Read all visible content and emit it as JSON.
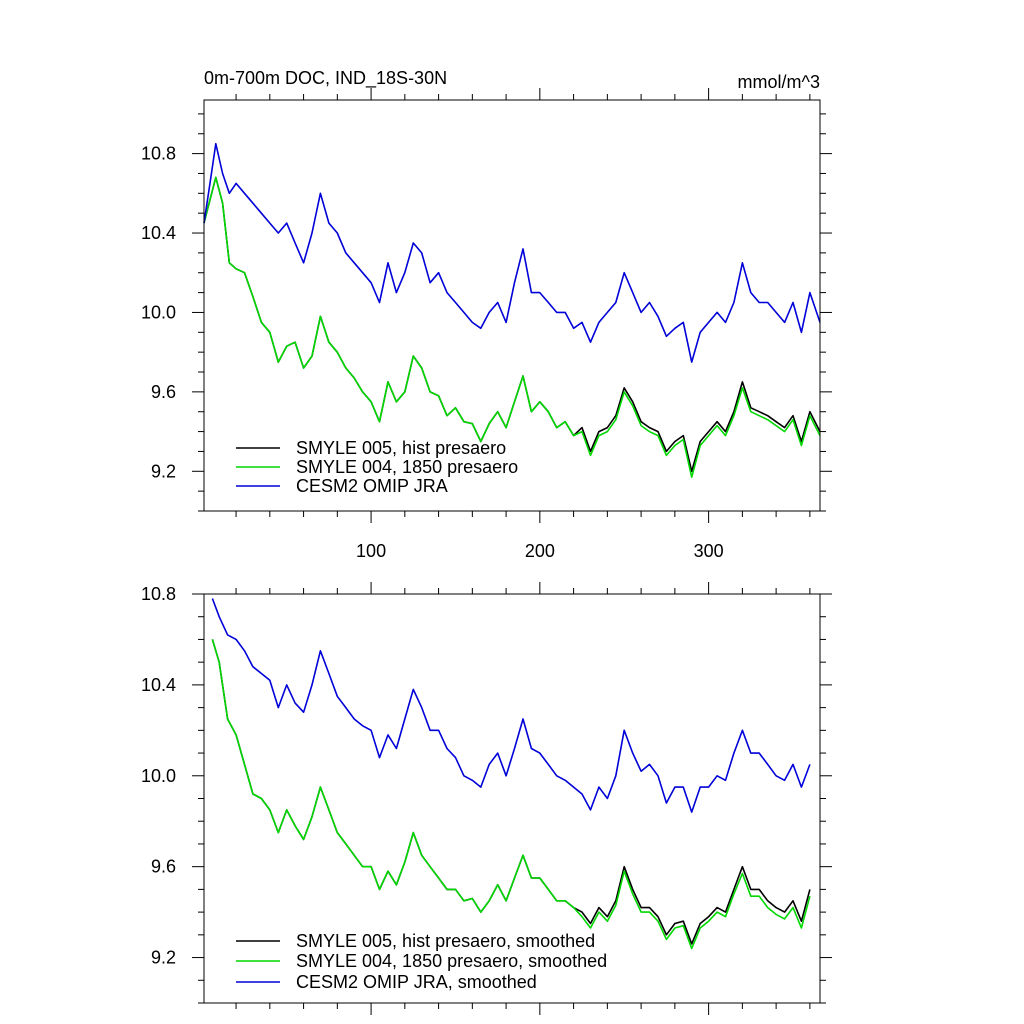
{
  "chart_data": [
    {
      "type": "line",
      "title": "0m-700m DOC, IND_18S-30N",
      "unit_label": "mmol/m^3",
      "xlim": [
        1,
        366
      ],
      "ylim": [
        9.0,
        11.07
      ],
      "xticks": [
        100,
        200,
        300
      ],
      "xtick_labels": [
        "100",
        "200",
        "300"
      ],
      "yticks": [
        9.2,
        9.6,
        10.0,
        10.4,
        10.8
      ],
      "ytick_labels": [
        "9.2",
        "9.6",
        "10.0",
        "10.4",
        "10.8"
      ],
      "grid": false,
      "legend_position": "bottom-left",
      "series": [
        {
          "name": "SMYLE 005, hist presaero",
          "color": "#000000",
          "x": [
            1,
            4,
            8,
            12,
            16,
            20,
            25,
            30,
            35,
            40,
            45,
            50,
            55,
            60,
            65,
            70,
            75,
            80,
            85,
            90,
            95,
            100,
            105,
            110,
            115,
            120,
            125,
            130,
            135,
            140,
            145,
            150,
            155,
            160,
            165,
            170,
            175,
            180,
            185,
            190,
            195,
            200,
            205,
            210,
            215,
            220,
            225,
            230,
            235,
            240,
            245,
            250,
            255,
            260,
            265,
            270,
            275,
            280,
            285,
            290,
            295,
            300,
            305,
            310,
            315,
            320,
            325,
            330,
            335,
            340,
            345,
            350,
            355,
            360,
            366
          ],
          "y": [
            10.45,
            10.55,
            10.68,
            10.55,
            10.25,
            10.22,
            10.2,
            10.08,
            9.95,
            9.9,
            9.75,
            9.83,
            9.85,
            9.72,
            9.78,
            9.98,
            9.85,
            9.8,
            9.72,
            9.67,
            9.6,
            9.55,
            9.45,
            9.65,
            9.55,
            9.6,
            9.78,
            9.72,
            9.6,
            9.58,
            9.48,
            9.52,
            9.45,
            9.44,
            9.35,
            9.44,
            9.5,
            9.42,
            9.55,
            9.68,
            9.5,
            9.55,
            9.5,
            9.42,
            9.45,
            9.38,
            9.42,
            9.3,
            9.4,
            9.42,
            9.48,
            9.62,
            9.55,
            9.45,
            9.42,
            9.4,
            9.3,
            9.35,
            9.38,
            9.2,
            9.35,
            9.4,
            9.45,
            9.4,
            9.5,
            9.65,
            9.52,
            9.5,
            9.48,
            9.45,
            9.42,
            9.48,
            9.35,
            9.5,
            9.4
          ]
        },
        {
          "name": "SMYLE 004, 1850 presaero",
          "color": "#00d800",
          "x": [
            1,
            4,
            8,
            12,
            16,
            20,
            25,
            30,
            35,
            40,
            45,
            50,
            55,
            60,
            65,
            70,
            75,
            80,
            85,
            90,
            95,
            100,
            105,
            110,
            115,
            120,
            125,
            130,
            135,
            140,
            145,
            150,
            155,
            160,
            165,
            170,
            175,
            180,
            185,
            190,
            195,
            200,
            205,
            210,
            215,
            220,
            225,
            230,
            235,
            240,
            245,
            250,
            255,
            260,
            265,
            270,
            275,
            280,
            285,
            290,
            295,
            300,
            305,
            310,
            315,
            320,
            325,
            330,
            335,
            340,
            345,
            350,
            355,
            360,
            366
          ],
          "y": [
            10.45,
            10.55,
            10.68,
            10.55,
            10.25,
            10.22,
            10.2,
            10.08,
            9.95,
            9.9,
            9.75,
            9.83,
            9.85,
            9.72,
            9.78,
            9.98,
            9.85,
            9.8,
            9.72,
            9.67,
            9.6,
            9.55,
            9.45,
            9.65,
            9.55,
            9.6,
            9.78,
            9.72,
            9.6,
            9.58,
            9.48,
            9.52,
            9.45,
            9.44,
            9.35,
            9.44,
            9.5,
            9.42,
            9.55,
            9.68,
            9.5,
            9.55,
            9.5,
            9.42,
            9.45,
            9.38,
            9.4,
            9.28,
            9.38,
            9.4,
            9.46,
            9.6,
            9.53,
            9.43,
            9.4,
            9.38,
            9.28,
            9.33,
            9.36,
            9.17,
            9.33,
            9.38,
            9.43,
            9.38,
            9.48,
            9.62,
            9.5,
            9.48,
            9.46,
            9.43,
            9.4,
            9.46,
            9.33,
            9.48,
            9.38
          ]
        },
        {
          "name": "CESM2 OMIP JRA",
          "color": "#0000d8",
          "x": [
            1,
            4,
            8,
            12,
            16,
            20,
            25,
            30,
            35,
            40,
            45,
            50,
            55,
            60,
            65,
            70,
            75,
            80,
            85,
            90,
            95,
            100,
            105,
            110,
            115,
            120,
            125,
            130,
            135,
            140,
            145,
            150,
            155,
            160,
            165,
            170,
            175,
            180,
            185,
            190,
            195,
            200,
            205,
            210,
            215,
            220,
            225,
            230,
            235,
            240,
            245,
            250,
            255,
            260,
            265,
            270,
            275,
            280,
            285,
            290,
            295,
            300,
            305,
            310,
            315,
            320,
            325,
            330,
            335,
            340,
            345,
            350,
            355,
            360,
            366
          ],
          "y": [
            10.45,
            10.62,
            10.85,
            10.7,
            10.6,
            10.65,
            10.6,
            10.55,
            10.5,
            10.45,
            10.4,
            10.45,
            10.35,
            10.25,
            10.4,
            10.6,
            10.45,
            10.4,
            10.3,
            10.25,
            10.2,
            10.15,
            10.05,
            10.25,
            10.1,
            10.2,
            10.35,
            10.3,
            10.15,
            10.2,
            10.1,
            10.05,
            10.0,
            9.95,
            9.92,
            10.0,
            10.05,
            9.95,
            10.15,
            10.32,
            10.1,
            10.1,
            10.05,
            10.0,
            10.0,
            9.92,
            9.95,
            9.85,
            9.95,
            10.0,
            10.05,
            10.2,
            10.1,
            10.0,
            10.05,
            9.98,
            9.88,
            9.92,
            9.95,
            9.75,
            9.9,
            9.95,
            10.0,
            9.95,
            10.05,
            10.25,
            10.1,
            10.05,
            10.05,
            10.0,
            9.95,
            10.05,
            9.9,
            10.1,
            9.95
          ]
        }
      ]
    },
    {
      "type": "line",
      "title": "",
      "xlim": [
        1,
        366
      ],
      "ylim": [
        9.0,
        10.8
      ],
      "xticks": [
        100,
        200,
        300
      ],
      "xtick_labels": [],
      "yticks": [
        9.2,
        9.6,
        10.0,
        10.4,
        10.8
      ],
      "ytick_labels": [
        "9.2",
        "9.6",
        "10.0",
        "10.4",
        "10.8"
      ],
      "grid": false,
      "legend_position": "bottom-left",
      "series": [
        {
          "name": "SMYLE 005, hist presaero, smoothed",
          "color": "#000000",
          "x": [
            6,
            10,
            15,
            20,
            25,
            30,
            35,
            40,
            45,
            50,
            55,
            60,
            65,
            70,
            75,
            80,
            85,
            90,
            95,
            100,
            105,
            110,
            115,
            120,
            125,
            130,
            135,
            140,
            145,
            150,
            155,
            160,
            165,
            170,
            175,
            180,
            185,
            190,
            195,
            200,
            205,
            210,
            215,
            220,
            225,
            230,
            235,
            240,
            245,
            250,
            255,
            260,
            265,
            270,
            275,
            280,
            285,
            290,
            295,
            300,
            305,
            310,
            315,
            320,
            325,
            330,
            335,
            340,
            345,
            350,
            355,
            360
          ],
          "y": [
            10.6,
            10.5,
            10.25,
            10.18,
            10.05,
            9.92,
            9.9,
            9.85,
            9.75,
            9.85,
            9.78,
            9.72,
            9.82,
            9.95,
            9.85,
            9.75,
            9.7,
            9.65,
            9.6,
            9.6,
            9.5,
            9.58,
            9.52,
            9.62,
            9.75,
            9.65,
            9.6,
            9.55,
            9.5,
            9.5,
            9.45,
            9.46,
            9.4,
            9.45,
            9.52,
            9.45,
            9.55,
            9.65,
            9.55,
            9.55,
            9.5,
            9.45,
            9.45,
            9.42,
            9.4,
            9.35,
            9.42,
            9.38,
            9.45,
            9.6,
            9.5,
            9.42,
            9.42,
            9.38,
            9.3,
            9.35,
            9.36,
            9.26,
            9.35,
            9.38,
            9.42,
            9.4,
            9.5,
            9.6,
            9.5,
            9.5,
            9.45,
            9.42,
            9.4,
            9.45,
            9.36,
            9.5
          ]
        },
        {
          "name": "SMYLE 004, 1850 presaero, smoothed",
          "color": "#00d800",
          "x": [
            6,
            10,
            15,
            20,
            25,
            30,
            35,
            40,
            45,
            50,
            55,
            60,
            65,
            70,
            75,
            80,
            85,
            90,
            95,
            100,
            105,
            110,
            115,
            120,
            125,
            130,
            135,
            140,
            145,
            150,
            155,
            160,
            165,
            170,
            175,
            180,
            185,
            190,
            195,
            200,
            205,
            210,
            215,
            220,
            225,
            230,
            235,
            240,
            245,
            250,
            255,
            260,
            265,
            270,
            275,
            280,
            285,
            290,
            295,
            300,
            305,
            310,
            315,
            320,
            325,
            330,
            335,
            340,
            345,
            350,
            355,
            360
          ],
          "y": [
            10.6,
            10.5,
            10.25,
            10.18,
            10.05,
            9.92,
            9.9,
            9.85,
            9.75,
            9.85,
            9.78,
            9.72,
            9.82,
            9.95,
            9.85,
            9.75,
            9.7,
            9.65,
            9.6,
            9.6,
            9.5,
            9.58,
            9.52,
            9.62,
            9.75,
            9.65,
            9.6,
            9.55,
            9.5,
            9.5,
            9.45,
            9.46,
            9.4,
            9.45,
            9.52,
            9.45,
            9.55,
            9.65,
            9.55,
            9.55,
            9.5,
            9.45,
            9.45,
            9.42,
            9.38,
            9.33,
            9.4,
            9.36,
            9.43,
            9.58,
            9.48,
            9.4,
            9.4,
            9.36,
            9.28,
            9.33,
            9.34,
            9.24,
            9.33,
            9.36,
            9.4,
            9.38,
            9.48,
            9.57,
            9.47,
            9.47,
            9.42,
            9.39,
            9.37,
            9.42,
            9.33,
            9.47
          ]
        },
        {
          "name": "CESM2 OMIP JRA, smoothed",
          "color": "#0000d8",
          "x": [
            6,
            10,
            15,
            20,
            25,
            30,
            35,
            40,
            45,
            50,
            55,
            60,
            65,
            70,
            75,
            80,
            85,
            90,
            95,
            100,
            105,
            110,
            115,
            120,
            125,
            130,
            135,
            140,
            145,
            150,
            155,
            160,
            165,
            170,
            175,
            180,
            185,
            190,
            195,
            200,
            205,
            210,
            215,
            220,
            225,
            230,
            235,
            240,
            245,
            250,
            255,
            260,
            265,
            270,
            275,
            280,
            285,
            290,
            295,
            300,
            305,
            310,
            315,
            320,
            325,
            330,
            335,
            340,
            345,
            350,
            355,
            360
          ],
          "y": [
            10.78,
            10.7,
            10.62,
            10.6,
            10.55,
            10.48,
            10.45,
            10.42,
            10.3,
            10.4,
            10.32,
            10.28,
            10.4,
            10.55,
            10.45,
            10.35,
            10.3,
            10.25,
            10.22,
            10.2,
            10.08,
            10.18,
            10.12,
            10.25,
            10.38,
            10.3,
            10.2,
            10.2,
            10.12,
            10.08,
            10.0,
            9.98,
            9.95,
            10.05,
            10.1,
            10.0,
            10.12,
            10.25,
            10.12,
            10.1,
            10.05,
            10.0,
            9.98,
            9.95,
            9.92,
            9.85,
            9.95,
            9.9,
            10.0,
            10.2,
            10.1,
            10.02,
            10.05,
            10.0,
            9.88,
            9.95,
            9.95,
            9.84,
            9.95,
            9.95,
            10.0,
            9.98,
            10.1,
            10.2,
            10.1,
            10.1,
            10.05,
            10.0,
            9.98,
            10.05,
            9.95,
            10.05
          ]
        }
      ]
    }
  ]
}
